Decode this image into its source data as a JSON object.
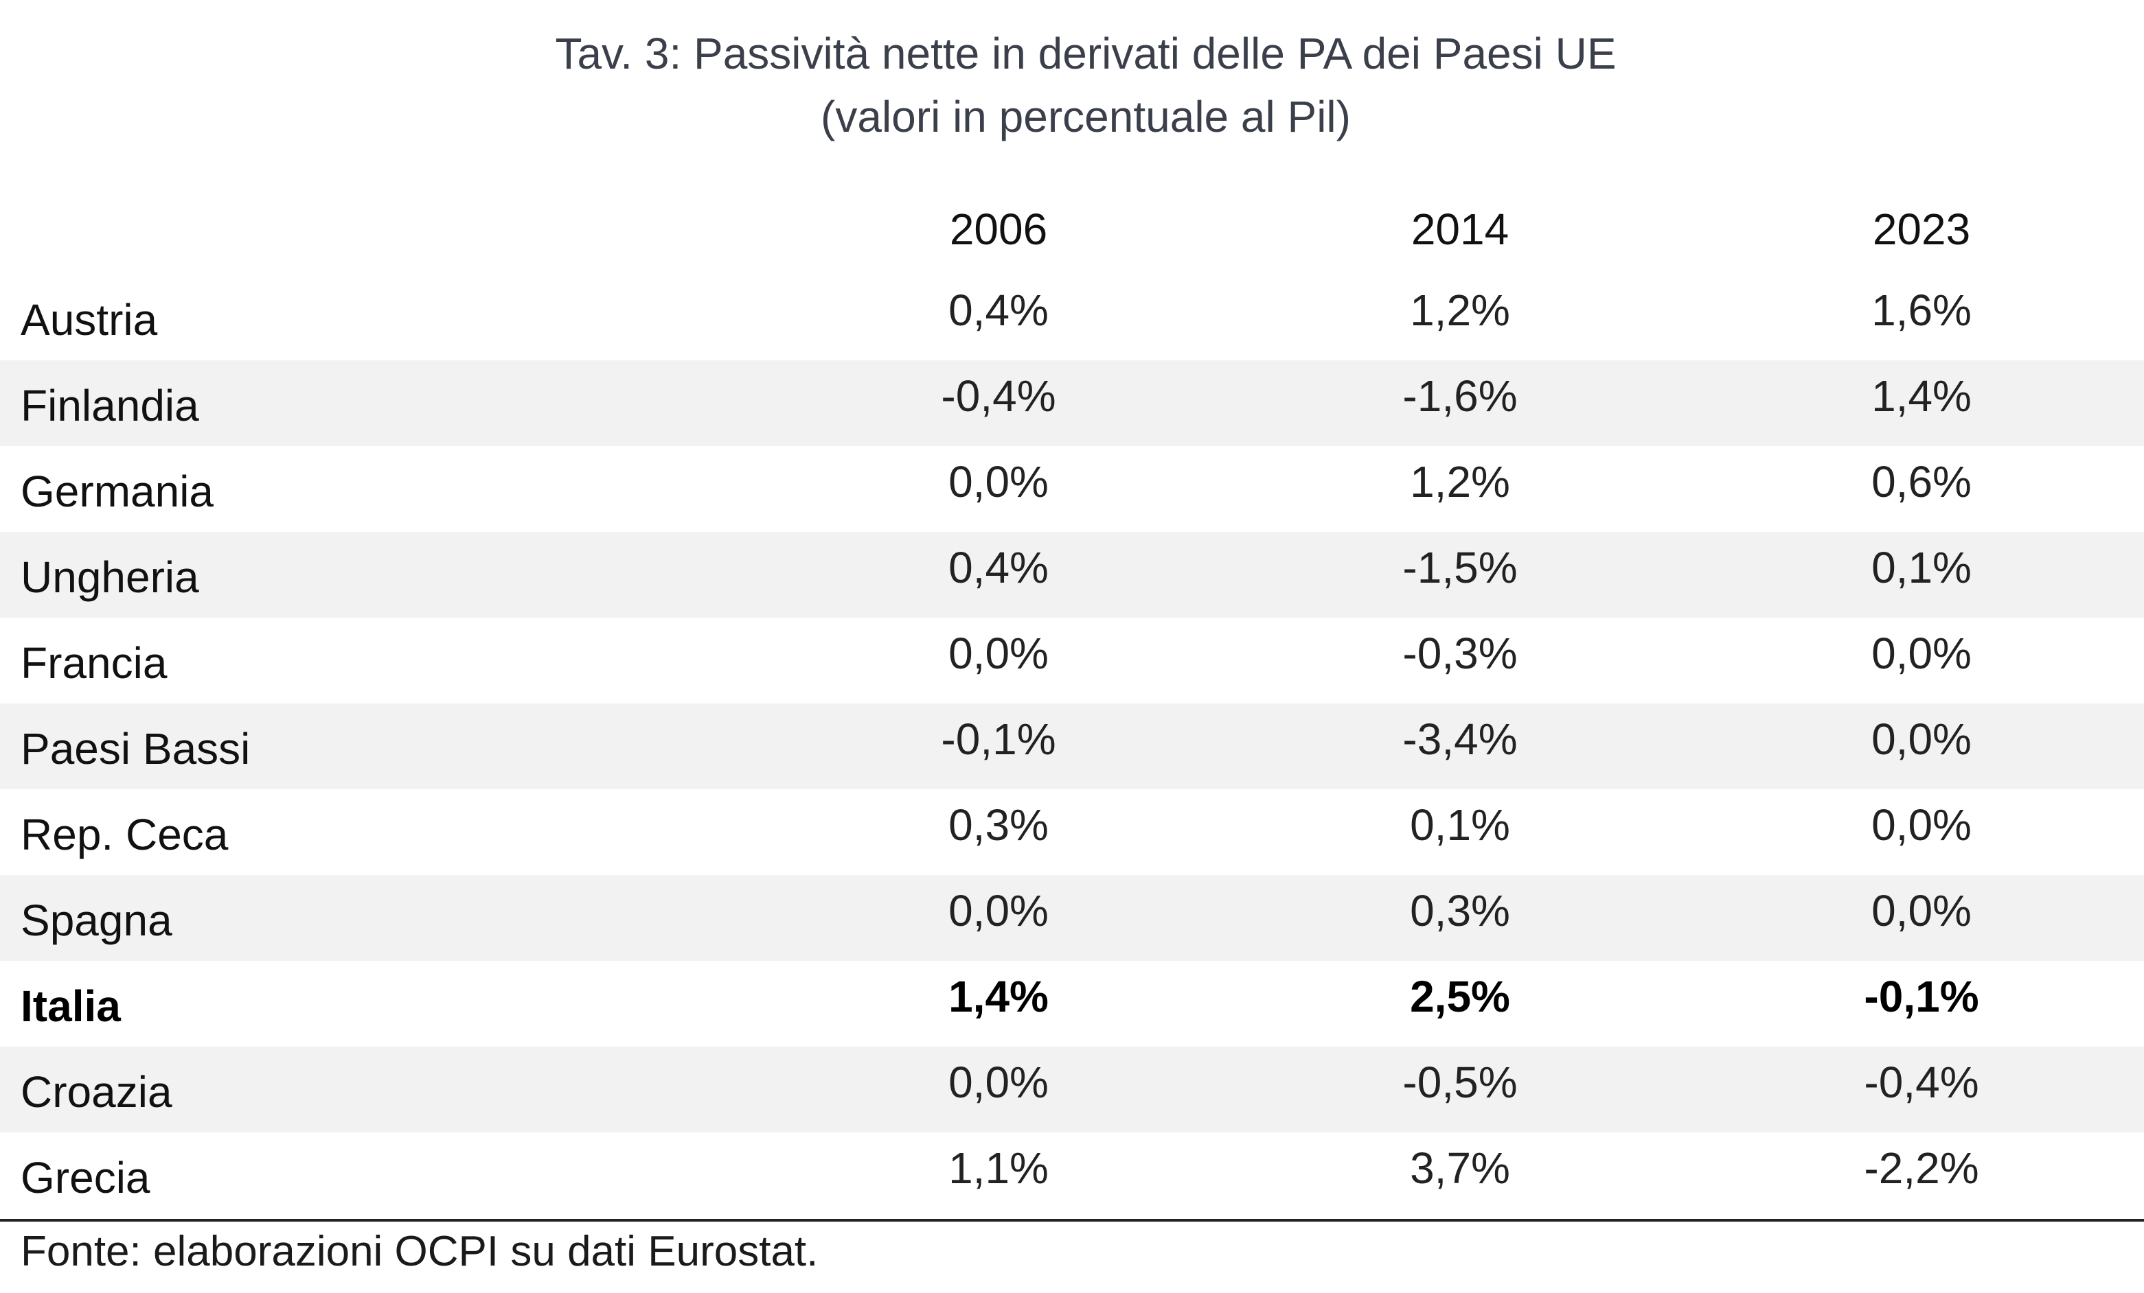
{
  "title": "Tav. 3: Passività nette in derivati delle PA dei Paesi UE",
  "subtitle": "(valori in percentuale al Pil)",
  "table": {
    "columns": [
      "2006",
      "2014",
      "2023"
    ],
    "rows": [
      {
        "country": "Austria",
        "values": [
          "0,4%",
          "1,2%",
          "1,6%"
        ],
        "bold": false
      },
      {
        "country": "Finlandia",
        "values": [
          "-0,4%",
          "-1,6%",
          "1,4%"
        ],
        "bold": false
      },
      {
        "country": "Germania",
        "values": [
          "0,0%",
          "1,2%",
          "0,6%"
        ],
        "bold": false
      },
      {
        "country": "Ungheria",
        "values": [
          "0,4%",
          "-1,5%",
          "0,1%"
        ],
        "bold": false
      },
      {
        "country": "Francia",
        "values": [
          "0,0%",
          "-0,3%",
          "0,0%"
        ],
        "bold": false
      },
      {
        "country": "Paesi Bassi",
        "values": [
          "-0,1%",
          "-3,4%",
          "0,0%"
        ],
        "bold": false
      },
      {
        "country": "Rep. Ceca",
        "values": [
          "0,3%",
          "0,1%",
          "0,0%"
        ],
        "bold": false
      },
      {
        "country": "Spagna",
        "values": [
          "0,0%",
          "0,3%",
          "0,0%"
        ],
        "bold": false
      },
      {
        "country": "Italia",
        "values": [
          "1,4%",
          "2,5%",
          "-0,1%"
        ],
        "bold": true
      },
      {
        "country": "Croazia",
        "values": [
          "0,0%",
          "-0,5%",
          "-0,4%"
        ],
        "bold": false
      },
      {
        "country": "Grecia",
        "values": [
          "1,1%",
          "3,7%",
          "-2,2%"
        ],
        "bold": false
      }
    ]
  },
  "source": "Fonte: elaborazioni OCPI su dati Eurostat.",
  "colors": {
    "title": "#3a3f4a",
    "row_shade": "#f2f2f2",
    "rule": "#222222"
  }
}
